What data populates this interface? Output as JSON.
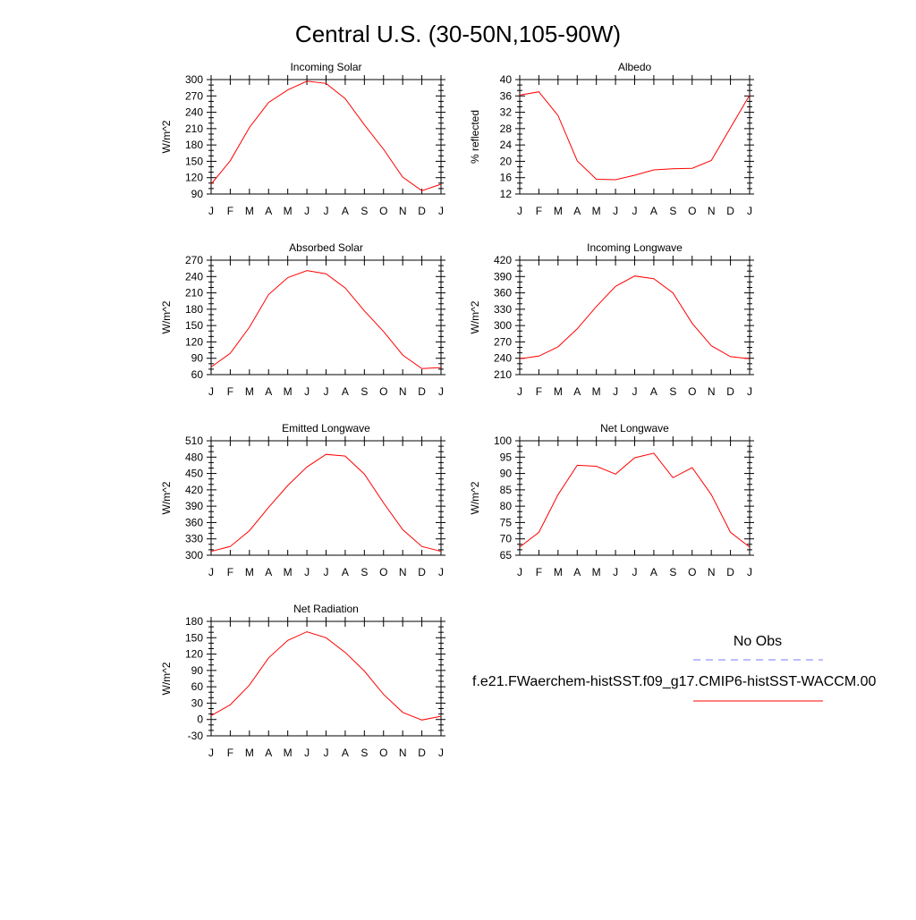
{
  "title": "Central U.S. (30-50N,105-90W)",
  "month_labels": [
    "J",
    "F",
    "M",
    "A",
    "M",
    "J",
    "J",
    "A",
    "S",
    "O",
    "N",
    "D",
    "J"
  ],
  "legend": {
    "obs_label": "No Obs",
    "obs_color": "#7b7bff",
    "model_label": "f.e21.FWaerchem-histSST.f09_g17.CMIP6-histSST-WACCM.00",
    "model_color": "#ff0000"
  },
  "chart_data": [
    {
      "type": "line",
      "title": "Incoming Solar",
      "ylabel": "W/m^2",
      "ylim": [
        90,
        300
      ],
      "yticks": [
        90,
        120,
        150,
        180,
        210,
        240,
        270,
        300
      ],
      "x": [
        "J",
        "F",
        "M",
        "A",
        "M",
        "J",
        "J",
        "A",
        "S",
        "O",
        "N",
        "D",
        "J"
      ],
      "values": [
        108,
        151,
        212,
        258,
        281,
        297,
        293,
        265,
        217,
        172,
        121,
        96,
        108
      ]
    },
    {
      "type": "line",
      "title": "Albedo",
      "ylabel": "% reflected",
      "ylim": [
        12,
        40
      ],
      "yticks": [
        12,
        16,
        20,
        24,
        28,
        32,
        36,
        40
      ],
      "x": [
        "J",
        "F",
        "M",
        "A",
        "M",
        "J",
        "J",
        "A",
        "S",
        "O",
        "N",
        "D",
        "J"
      ],
      "values": [
        36.2,
        37.0,
        31.2,
        20.1,
        15.6,
        15.5,
        16.6,
        17.9,
        18.2,
        18.3,
        20.2,
        28.2,
        36.2
      ]
    },
    {
      "type": "line",
      "title": "Absorbed Solar",
      "ylabel": "W/m^2",
      "ylim": [
        60,
        270
      ],
      "yticks": [
        60,
        90,
        120,
        150,
        180,
        210,
        240,
        270
      ],
      "x": [
        "J",
        "F",
        "M",
        "A",
        "M",
        "J",
        "J",
        "A",
        "S",
        "O",
        "N",
        "D",
        "J"
      ],
      "values": [
        74,
        99,
        147,
        207,
        238,
        251,
        245,
        219,
        177,
        139,
        96,
        71,
        73
      ]
    },
    {
      "type": "line",
      "title": "Incoming Longwave",
      "ylabel": "W/m^2",
      "ylim": [
        210,
        420
      ],
      "yticks": [
        210,
        240,
        270,
        300,
        330,
        360,
        390,
        420
      ],
      "x": [
        "J",
        "F",
        "M",
        "A",
        "M",
        "J",
        "J",
        "A",
        "S",
        "O",
        "N",
        "D",
        "J"
      ],
      "values": [
        239,
        244,
        261,
        294,
        335,
        372,
        391,
        386,
        360,
        304,
        263,
        243,
        239
      ]
    },
    {
      "type": "line",
      "title": "Emitted Longwave",
      "ylabel": "W/m^2",
      "ylim": [
        300,
        510
      ],
      "yticks": [
        300,
        330,
        360,
        390,
        420,
        450,
        480,
        510
      ],
      "x": [
        "J",
        "F",
        "M",
        "A",
        "M",
        "J",
        "J",
        "A",
        "S",
        "O",
        "N",
        "D",
        "J"
      ],
      "values": [
        307,
        316,
        345,
        388,
        428,
        462,
        485,
        482,
        449,
        396,
        347,
        316,
        307
      ]
    },
    {
      "type": "line",
      "title": "Net Longwave",
      "ylabel": "W/m^2",
      "ylim": [
        65,
        100
      ],
      "yticks": [
        65,
        70,
        75,
        80,
        85,
        90,
        95,
        100
      ],
      "x": [
        "J",
        "F",
        "M",
        "A",
        "M",
        "J",
        "J",
        "A",
        "S",
        "O",
        "N",
        "D",
        "J"
      ],
      "values": [
        67.5,
        72.0,
        83.5,
        92.5,
        92.2,
        89.8,
        94.8,
        96.2,
        88.7,
        91.8,
        83.5,
        72.0,
        67.5
      ]
    },
    {
      "type": "line",
      "title": "Net Radiation",
      "ylabel": "W/m^2",
      "ylim": [
        -30,
        180
      ],
      "yticks": [
        -30,
        0,
        30,
        60,
        90,
        120,
        150,
        180
      ],
      "x": [
        "J",
        "F",
        "M",
        "A",
        "M",
        "J",
        "J",
        "A",
        "S",
        "O",
        "N",
        "D",
        "J"
      ],
      "values": [
        7,
        27,
        63,
        113,
        145,
        161,
        150,
        123,
        89,
        46,
        13,
        -1,
        6
      ]
    }
  ]
}
